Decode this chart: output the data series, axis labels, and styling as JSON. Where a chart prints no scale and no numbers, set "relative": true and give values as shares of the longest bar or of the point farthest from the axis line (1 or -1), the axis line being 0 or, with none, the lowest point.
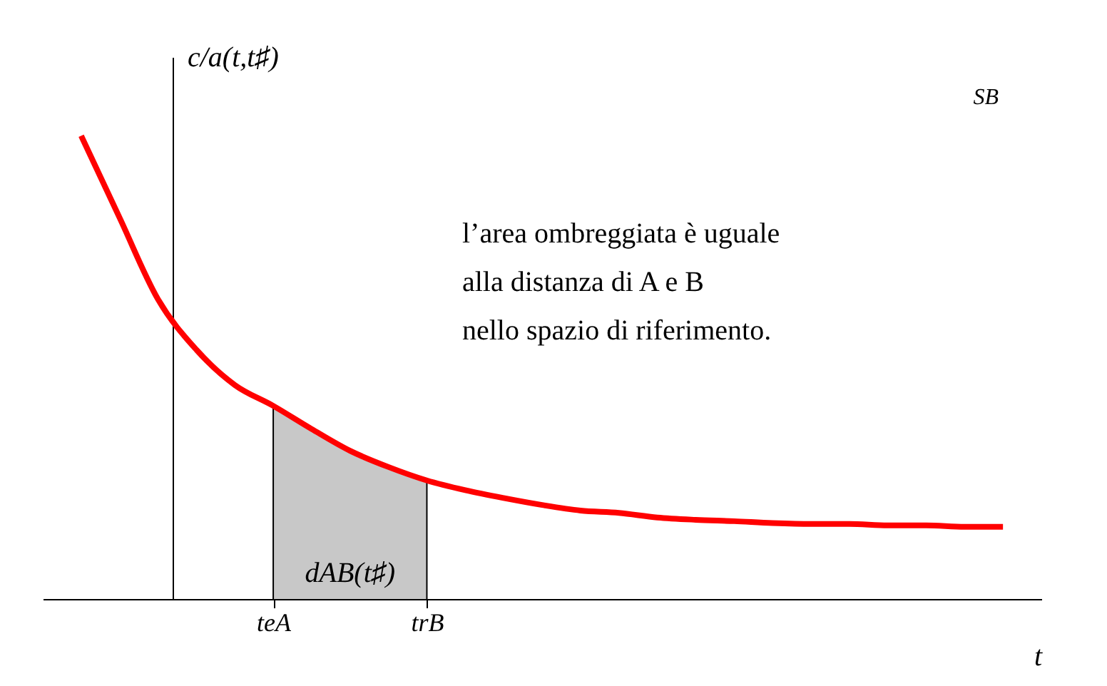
{
  "chart_data": {
    "type": "line",
    "relative": true,
    "xlabel": "t",
    "ylabel": "c/a(t,t♯)",
    "categories": [
      null,
      null,
      null,
      null,
      null,
      "teA",
      null,
      null,
      null,
      "trB",
      null,
      null,
      null,
      null,
      null,
      null,
      null,
      null,
      null,
      null,
      null,
      null,
      null,
      null,
      null
    ],
    "series": [
      {
        "color": "#ff0000",
        "values": [
          1,
          0.823,
          0.647,
          0.538,
          0.462,
          0.417,
          0.367,
          0.32,
          0.285,
          0.256,
          0.235,
          0.218,
          0.203,
          0.191,
          0.186,
          0.176,
          0.171,
          0.168,
          0.164,
          0.162,
          0.162,
          0.159,
          0.159,
          0.156,
          0.156
        ]
      },
      {
        "type": "area",
        "color": "#c8c8c8",
        "values": [
          null,
          null,
          null,
          null,
          null,
          0.417,
          0.367,
          0.32,
          0.285,
          0.256,
          null,
          null,
          null,
          null,
          null,
          null,
          null,
          null,
          null,
          null,
          null,
          null,
          null,
          null,
          null
        ]
      }
    ],
    "annotations": [
      "dAB(t♯)",
      "l’area ombreggiata è uguale\nalla distanza di A e B\nnello spazio di riferimento.",
      "SB"
    ],
    "line_style": "solid",
    "marker": "none"
  }
}
